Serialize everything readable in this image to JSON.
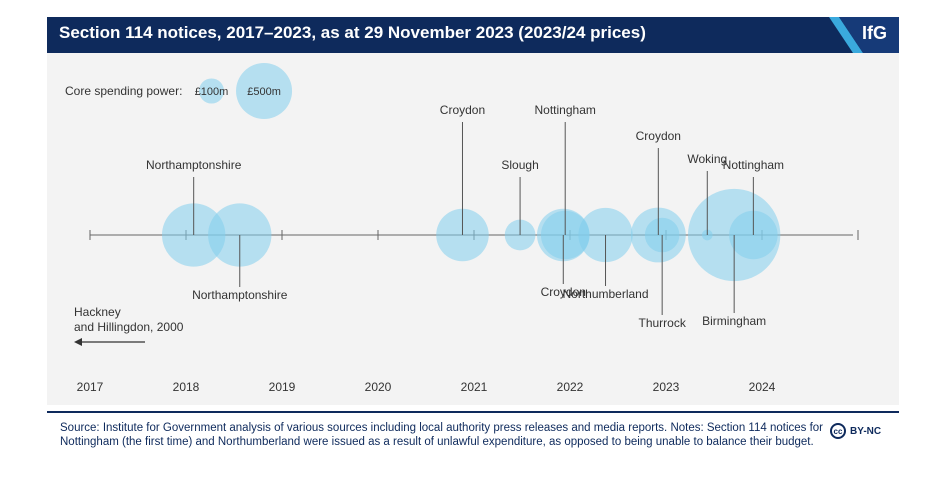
{
  "header": {
    "title": "Section 114 notices, 2017–2023, as at 29 November 2023 (2023/24 prices)",
    "logo_text": "IfG",
    "colors": {
      "navy": "#0e2a5c",
      "accent": "#3aa9dd"
    }
  },
  "chart_data": {
    "type": "bubble",
    "x_ticks": [
      "2017",
      "2018",
      "2019",
      "2020",
      "2021",
      "2022",
      "2023",
      "2024"
    ],
    "xlim": [
      2017,
      2025
    ],
    "size_legend": {
      "label": "Core spending power:",
      "items": [
        {
          "label": "£100m",
          "value": 100
        },
        {
          "label": "£500m",
          "value": 500
        }
      ]
    },
    "bubbles": [
      {
        "label": "Northamptonshire",
        "date": "2018-02",
        "x": 2018.08,
        "value": 640,
        "label_pos": "above"
      },
      {
        "label": "Northamptonshire",
        "date": "2018-07",
        "x": 2018.56,
        "value": 640,
        "label_pos": "below"
      },
      {
        "label": "Croydon",
        "date": "2020-11",
        "x": 2020.88,
        "value": 440,
        "label_pos": "above"
      },
      {
        "label": "Slough",
        "date": "2021-07",
        "x": 2021.48,
        "value": 150,
        "label_pos": "above"
      },
      {
        "label": "Nottingham",
        "date": "2021-12",
        "x": 2021.95,
        "value": 375,
        "label_pos": "above"
      },
      {
        "label": "Croydon",
        "date": "2021-12",
        "x": 2021.93,
        "value": 440,
        "label_pos": "below"
      },
      {
        "label": "Northumberland",
        "date": "2022-05",
        "x": 2022.37,
        "value": 470,
        "label_pos": "below"
      },
      {
        "label": "Croydon",
        "date": "2022-11",
        "x": 2022.92,
        "value": 480,
        "label_pos": "above"
      },
      {
        "label": "Thurrock",
        "date": "2022-12",
        "x": 2022.96,
        "value": 190,
        "label_pos": "below"
      },
      {
        "label": "Woking",
        "date": "2023-06",
        "x": 2023.43,
        "value": 18,
        "label_pos": "above"
      },
      {
        "label": "Birmingham",
        "date": "2023-09",
        "x": 2023.71,
        "value": 1360,
        "label_pos": "below"
      },
      {
        "label": "Nottingham",
        "date": "2023-11",
        "x": 2023.91,
        "value": 375,
        "label_pos": "above"
      }
    ],
    "annotation": {
      "label_line1": "Hackney",
      "label_line2": "and Hillingdon, 2000"
    }
  },
  "footer": {
    "source": "Source: Institute for Government analysis of various sources including local authority press releases and media reports. Notes: Section 114 notices for Nottingham (the first time) and Northumberland were issued as a result of unlawful expenditure, as opposed to being unable to balance their budget.",
    "license_icon": "cc-icon",
    "license": "BY-NC"
  }
}
